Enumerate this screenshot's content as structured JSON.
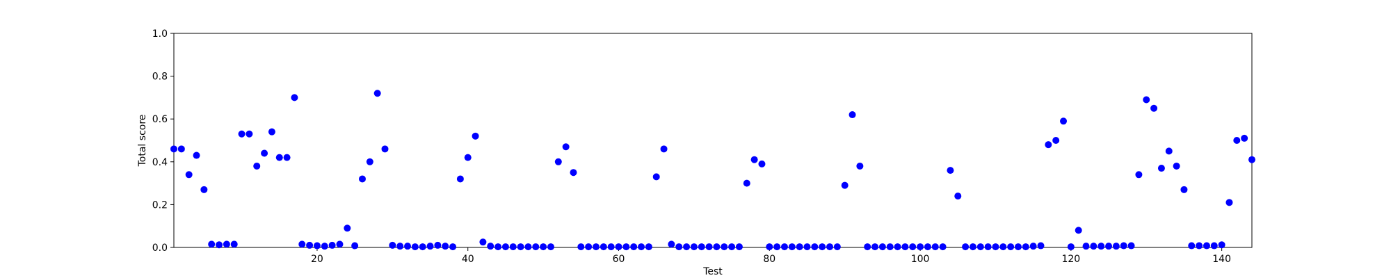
{
  "chart_data": {
    "type": "scatter",
    "title": "",
    "xlabel": "Test",
    "ylabel": "Total score",
    "xlim": [
      1,
      144
    ],
    "ylim": [
      0.0,
      1.0
    ],
    "xticks": [
      20,
      40,
      60,
      80,
      100,
      120,
      140
    ],
    "yticks": [
      0.0,
      0.2,
      0.4,
      0.6,
      0.8,
      1.0
    ],
    "xtick_labels": [
      "20",
      "40",
      "60",
      "80",
      "100",
      "120",
      "140"
    ],
    "ytick_labels": [
      "0.0",
      "0.2",
      "0.4",
      "0.6",
      "0.8",
      "1.0"
    ],
    "grid": false,
    "marker_color": "#0000ff",
    "series": [
      {
        "x": [
          1,
          2,
          3,
          4,
          5,
          6,
          7,
          8,
          9,
          10,
          11,
          12,
          13,
          14,
          15,
          16,
          17,
          18,
          19,
          20,
          21,
          22,
          23,
          24,
          25,
          26,
          27,
          28,
          29,
          30,
          31,
          32,
          33,
          34,
          35,
          36,
          37,
          38,
          39,
          40,
          41,
          42,
          43,
          44,
          45,
          46,
          47,
          48,
          49,
          50,
          51,
          52,
          53,
          54,
          55,
          56,
          57,
          58,
          59,
          60,
          61,
          62,
          63,
          64,
          65,
          66,
          67,
          68,
          69,
          70,
          71,
          72,
          73,
          74,
          75,
          76,
          77,
          78,
          79,
          80,
          81,
          82,
          83,
          84,
          85,
          86,
          87,
          88,
          89,
          90,
          91,
          92,
          93,
          94,
          95,
          96,
          97,
          98,
          99,
          100,
          101,
          102,
          103,
          104,
          105,
          106,
          107,
          108,
          109,
          110,
          111,
          112,
          113,
          114,
          115,
          116,
          117,
          118,
          119,
          120,
          121,
          122,
          123,
          124,
          125,
          126,
          127,
          128,
          129,
          130,
          131,
          132,
          133,
          134,
          135,
          136,
          137,
          138,
          139,
          140,
          141,
          142,
          143,
          144
        ],
        "y": [
          0.46,
          0.46,
          0.34,
          0.43,
          0.27,
          0.015,
          0.012,
          0.015,
          0.015,
          0.53,
          0.53,
          0.38,
          0.44,
          0.54,
          0.42,
          0.42,
          0.7,
          0.015,
          0.01,
          0.008,
          0.006,
          0.01,
          0.015,
          0.09,
          0.008,
          0.32,
          0.4,
          0.72,
          0.46,
          0.01,
          0.006,
          0.006,
          0.003,
          0.003,
          0.006,
          0.01,
          0.006,
          0.003,
          0.32,
          0.42,
          0.52,
          0.025,
          0.006,
          0.003,
          0.003,
          0.003,
          0.003,
          0.003,
          0.003,
          0.003,
          0.003,
          0.4,
          0.47,
          0.35,
          0.003,
          0.003,
          0.003,
          0.003,
          0.003,
          0.003,
          0.003,
          0.003,
          0.003,
          0.003,
          0.33,
          0.46,
          0.015,
          0.003,
          0.003,
          0.003,
          0.003,
          0.003,
          0.003,
          0.003,
          0.003,
          0.003,
          0.3,
          0.41,
          0.39,
          0.003,
          0.003,
          0.003,
          0.003,
          0.003,
          0.003,
          0.003,
          0.003,
          0.003,
          0.003,
          0.29,
          0.62,
          0.38,
          0.003,
          0.003,
          0.003,
          0.003,
          0.003,
          0.003,
          0.003,
          0.003,
          0.003,
          0.003,
          0.003,
          0.36,
          0.24,
          0.003,
          0.003,
          0.003,
          0.003,
          0.003,
          0.003,
          0.003,
          0.003,
          0.003,
          0.006,
          0.008,
          0.48,
          0.5,
          0.59,
          0.003,
          0.08,
          0.006,
          0.006,
          0.006,
          0.006,
          0.006,
          0.008,
          0.008,
          0.34,
          0.69,
          0.65,
          0.37,
          0.45,
          0.38,
          0.27,
          0.008,
          0.008,
          0.008,
          0.008,
          0.012,
          0.21,
          0.5,
          0.51,
          0.41
        ]
      }
    ]
  }
}
